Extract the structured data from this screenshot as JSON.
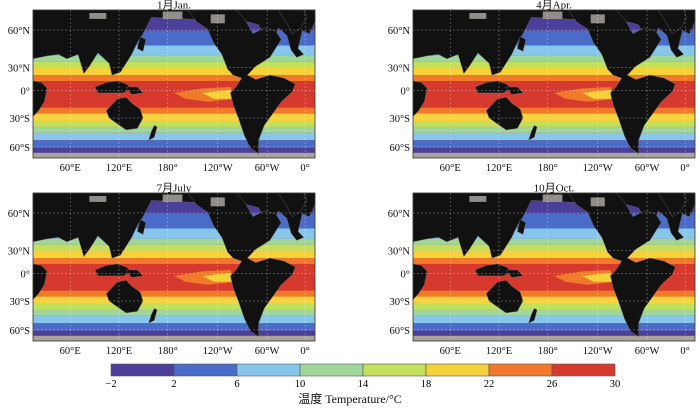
{
  "panels": [
    {
      "id": "jan",
      "title": "1月Jan."
    },
    {
      "id": "apr",
      "title": "4月Apr."
    },
    {
      "id": "jul",
      "title": "7月July"
    },
    {
      "id": "oct",
      "title": "10月Oct."
    }
  ],
  "lat_labels": [
    "60°N",
    "30°N",
    "0°",
    "30°S",
    "60°S"
  ],
  "lon_labels": [
    "60°E",
    "120°E",
    "180°",
    "120°W",
    "60°W",
    "0°"
  ],
  "legend": {
    "title": "温度 Temperature/°C",
    "ticks": [
      "−2",
      "2",
      "6",
      "10",
      "14",
      "18",
      "22",
      "26",
      "30"
    ],
    "colors": [
      "#4b3f9a",
      "#4a6cc8",
      "#86c6ea",
      "#9fd69a",
      "#c3e05a",
      "#f6d23a",
      "#f07a2a",
      "#d63a2f"
    ]
  },
  "colors": {
    "land": "#111111",
    "ice": "#a8a39d"
  }
}
